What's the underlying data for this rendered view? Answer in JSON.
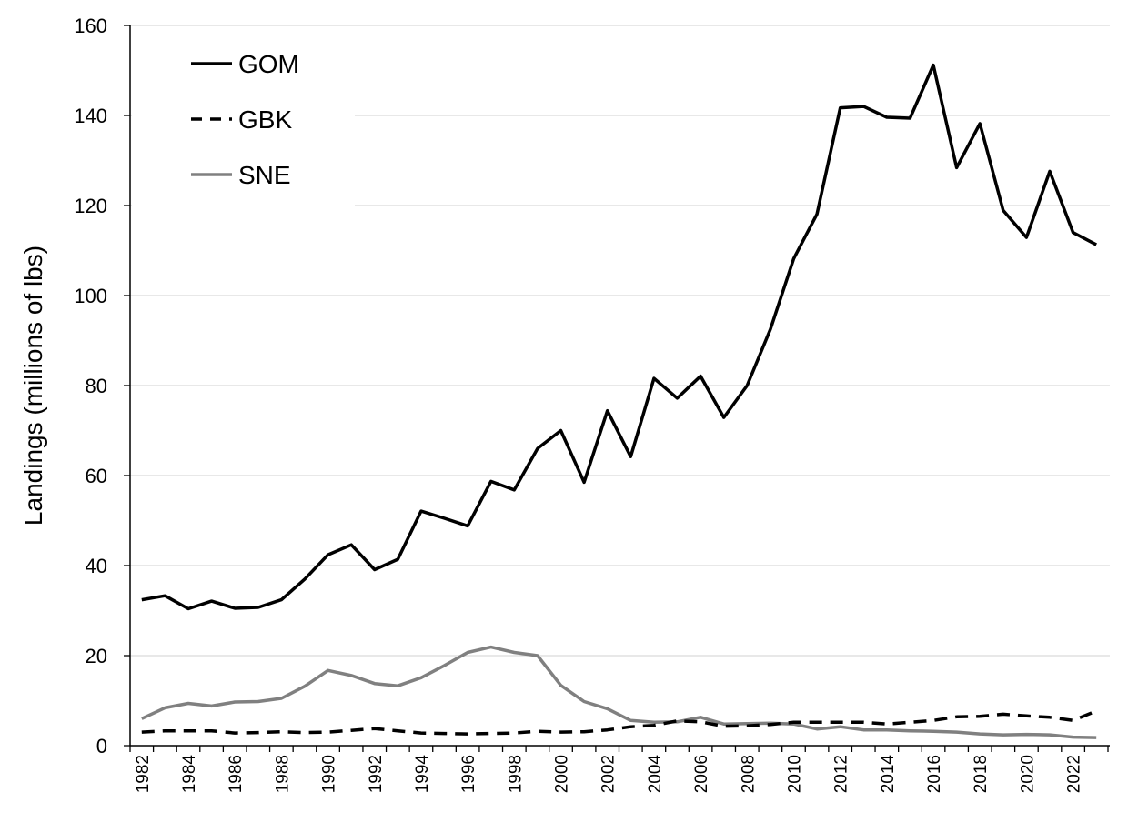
{
  "chart_data": {
    "type": "line",
    "title": "",
    "xlabel": "",
    "ylabel": "Landings (millions of lbs)",
    "ylim": [
      0,
      160
    ],
    "yticks": [
      0,
      20,
      40,
      60,
      80,
      100,
      120,
      140,
      160
    ],
    "grid": true,
    "legend_position": "top-left",
    "x": [
      1982,
      1983,
      1984,
      1985,
      1986,
      1987,
      1988,
      1989,
      1990,
      1991,
      1992,
      1993,
      1994,
      1995,
      1996,
      1997,
      1998,
      1999,
      2000,
      2001,
      2002,
      2003,
      2004,
      2005,
      2006,
      2007,
      2008,
      2009,
      2010,
      2011,
      2012,
      2013,
      2014,
      2015,
      2016,
      2017,
      2018,
      2019,
      2020,
      2021,
      2022,
      2023
    ],
    "xtick_labels": [
      "1982",
      "1984",
      "1986",
      "1988",
      "1990",
      "1992",
      "1994",
      "1996",
      "1998",
      "2000",
      "2002",
      "2004",
      "2006",
      "2008",
      "2010",
      "2012",
      "2014",
      "2016",
      "2018",
      "2020",
      "2022"
    ],
    "series": [
      {
        "name": "GOM",
        "style": "solid",
        "color": "#000000",
        "values": [
          32.4,
          33.3,
          30.4,
          32.1,
          30.5,
          30.7,
          32.4,
          37.0,
          42.4,
          44.6,
          39.1,
          41.4,
          52.1,
          50.5,
          48.8,
          58.7,
          56.8,
          66.0,
          70.0,
          58.5,
          74.4,
          64.2,
          81.6,
          77.2,
          82.1,
          72.9,
          80.0,
          92.5,
          108.2,
          118.1,
          141.7,
          142.0,
          139.6,
          139.4,
          151.2,
          128.4,
          138.2,
          118.9,
          112.9,
          127.6,
          114.0,
          111.3
        ]
      },
      {
        "name": "GBK",
        "style": "dashed",
        "color": "#000000",
        "values": [
          3.0,
          3.3,
          3.3,
          3.3,
          2.8,
          2.9,
          3.1,
          2.9,
          3.0,
          3.4,
          3.8,
          3.3,
          2.8,
          2.7,
          2.6,
          2.7,
          2.8,
          3.2,
          3.0,
          3.1,
          3.5,
          4.2,
          4.5,
          5.5,
          5.3,
          4.3,
          4.4,
          4.7,
          5.2,
          5.2,
          5.2,
          5.2,
          4.8,
          5.2,
          5.6,
          6.4,
          6.5,
          7.0,
          6.6,
          6.3,
          5.6,
          7.7
        ]
      },
      {
        "name": "SNE",
        "style": "solid",
        "color": "#808080",
        "values": [
          6.0,
          8.4,
          9.4,
          8.8,
          9.7,
          9.8,
          10.5,
          13.2,
          16.7,
          15.6,
          13.8,
          13.3,
          15.1,
          17.8,
          20.7,
          21.9,
          20.7,
          20.0,
          13.4,
          9.8,
          8.2,
          5.6,
          5.2,
          5.3,
          6.3,
          4.8,
          4.9,
          5.0,
          4.8,
          3.7,
          4.2,
          3.5,
          3.5,
          3.3,
          3.2,
          3.0,
          2.6,
          2.4,
          2.5,
          2.4,
          1.9,
          1.8
        ]
      }
    ]
  }
}
